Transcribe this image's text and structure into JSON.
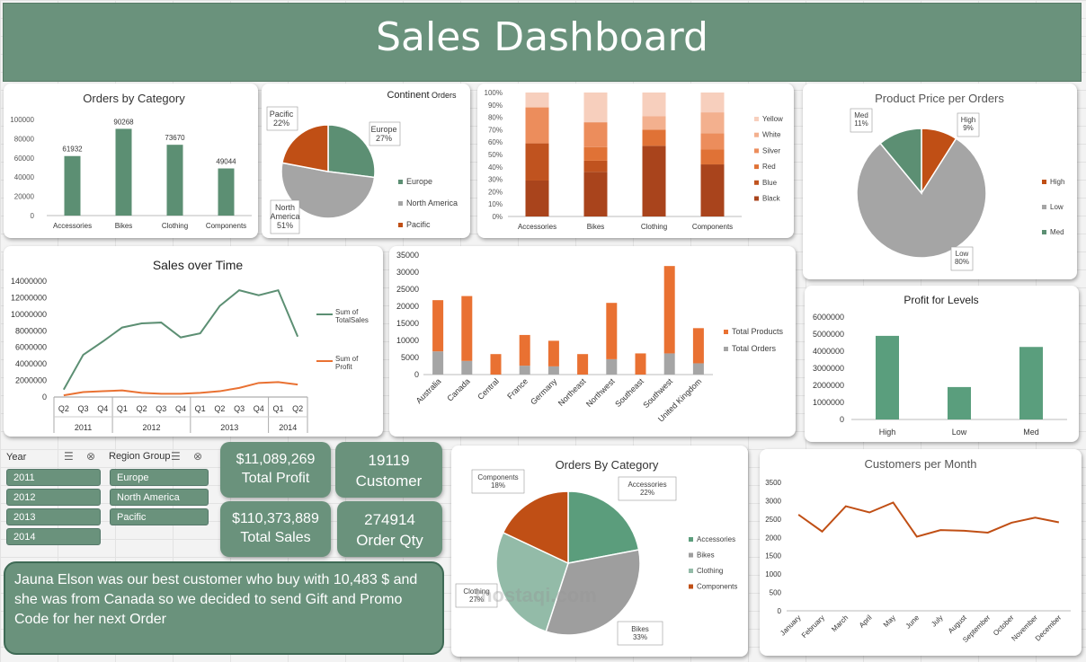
{
  "title": "Sales Dashboard",
  "kpis": {
    "profit_value": "$11,089,269",
    "profit_label": "Total Profit",
    "customer_value": "19119",
    "customer_label": "Customer",
    "sales_value": "$110,373,889",
    "sales_label": "Total Sales",
    "qty_value": "274914",
    "qty_label": "Order Qty"
  },
  "slicers": {
    "year": {
      "title": "Year",
      "items": [
        "2011",
        "2012",
        "2013",
        "2014"
      ]
    },
    "region": {
      "title": "Region Group",
      "items": [
        "Europe",
        "North America",
        "Pacific"
      ]
    }
  },
  "note": "Jauna Elson was our best customer who buy with 10,483 $ and she was from Canada so we decided to send Gift and Promo Code for her next Order",
  "watermark": "mostaqi.com",
  "colors": {
    "green": "#5c8f73",
    "grey": "#a5a5a5",
    "orange": "#e97132",
    "rust": "#c04f15",
    "brown": "#b55a28",
    "header": "#6a927c"
  },
  "chart_data": [
    {
      "id": "orders_by_category",
      "type": "bar",
      "title": "Orders by Category",
      "categories": [
        "Accessories",
        "Bikes",
        "Clothing",
        "Components"
      ],
      "values": [
        61932,
        90268,
        73670,
        49044
      ],
      "ylim": [
        0,
        100000
      ],
      "yticks": [
        "0",
        "20000",
        "40000",
        "60000",
        "80000",
        "100000"
      ],
      "grid": false
    },
    {
      "id": "continent_orders",
      "type": "pie",
      "title_main": "Continent",
      "title_small": "Orders",
      "labels": [
        "Europe",
        "North America",
        "Pacific"
      ],
      "values": [
        27,
        51,
        22
      ],
      "data_labels": [
        "Europe\n27%",
        "North\nAmerica\n51%",
        "Pacific\n22%"
      ],
      "legend": "right"
    },
    {
      "id": "color_mix",
      "type": "bar",
      "stacked": "100%",
      "categories": [
        "Accessories",
        "Bikes",
        "Clothing",
        "Components"
      ],
      "yticks": [
        "0%",
        "10%",
        "20%",
        "30%",
        "40%",
        "50%",
        "60%",
        "70%",
        "80%",
        "90%",
        "100%"
      ],
      "series": [
        {
          "name": "Black",
          "values": [
            29,
            36,
            57,
            42
          ]
        },
        {
          "name": "Blue",
          "values": [
            30,
            9,
            0,
            0
          ]
        },
        {
          "name": "Red",
          "values": [
            0,
            11,
            13,
            12
          ]
        },
        {
          "name": "Silver",
          "values": [
            29,
            20,
            0,
            13
          ]
        },
        {
          "name": "White",
          "values": [
            0,
            0,
            11,
            17
          ]
        },
        {
          "name": "Yellow",
          "values": [
            12,
            24,
            19,
            16
          ]
        }
      ],
      "legend": "right"
    },
    {
      "id": "product_price_per_orders",
      "type": "pie",
      "title": "Product Price per Orders",
      "labels": [
        "High",
        "Low",
        "Med"
      ],
      "values": [
        9,
        80,
        11
      ],
      "data_labels": [
        "High\n9%",
        "Low\n80%",
        "Med\n11%"
      ],
      "legend": "right"
    },
    {
      "id": "sales_over_time",
      "type": "line",
      "title": "Sales over Time",
      "x": [
        "Q2",
        "Q3",
        "Q4",
        "Q1",
        "Q2",
        "Q3",
        "Q4",
        "Q1",
        "Q2",
        "Q3",
        "Q4",
        "Q1",
        "Q2"
      ],
      "year_groups": [
        {
          "label": "2011",
          "count": 3
        },
        {
          "label": "2012",
          "count": 4
        },
        {
          "label": "2013",
          "count": 4
        },
        {
          "label": "2014",
          "count": 2
        }
      ],
      "series": [
        {
          "name": "Sum of TotalSales",
          "values": [
            900000,
            5100000,
            6700000,
            8400000,
            8900000,
            9000000,
            7200000,
            7700000,
            11000000,
            12900000,
            12300000,
            12900000,
            7300000
          ]
        },
        {
          "name": "Sum of Profit",
          "values": [
            200000,
            600000,
            700000,
            800000,
            500000,
            400000,
            400000,
            500000,
            700000,
            1100000,
            1700000,
            1800000,
            1500000
          ]
        }
      ],
      "ylim": [
        0,
        14000000
      ],
      "yticks": [
        "0",
        "2000000",
        "4000000",
        "6000000",
        "8000000",
        "10000000",
        "12000000",
        "14000000"
      ],
      "legend": "right"
    },
    {
      "id": "region_products_orders",
      "type": "bar",
      "stacked": true,
      "categories": [
        "Australia",
        "Canada",
        "Central",
        "France",
        "Germany",
        "Northeast",
        "Northwest",
        "Southeast",
        "Southwest",
        "United Kingdom"
      ],
      "series": [
        {
          "name": "Total Orders",
          "values": [
            6800,
            4000,
            0,
            2600,
            2400,
            0,
            4500,
            0,
            6200,
            3300
          ]
        },
        {
          "name": "Total Products",
          "values": [
            15000,
            19000,
            6000,
            9000,
            7500,
            6000,
            16500,
            6200,
            25600,
            10300
          ]
        }
      ],
      "ylim": [
        0,
        35000
      ],
      "yticks": [
        "0",
        "5000",
        "10000",
        "15000",
        "20000",
        "25000",
        "30000",
        "35000"
      ],
      "legend": "right"
    },
    {
      "id": "profit_for_levels",
      "type": "bar",
      "title": "Profit for Levels",
      "categories": [
        "High",
        "Low",
        "Med"
      ],
      "values": [
        4900000,
        1900000,
        4250000
      ],
      "ylim": [
        0,
        6000000
      ],
      "yticks": [
        "0",
        "1000000",
        "2000000",
        "3000000",
        "4000000",
        "5000000",
        "6000000"
      ]
    },
    {
      "id": "orders_by_category_pie",
      "type": "pie",
      "title": "Orders By Category",
      "labels": [
        "Accessories",
        "Bikes",
        "Clothing",
        "Components"
      ],
      "values": [
        22,
        33,
        27,
        18
      ],
      "data_labels": [
        "Accessories\n22%",
        "Bikes\n33%",
        "Clothing\n27%",
        "Components\n18%"
      ],
      "legend": "right"
    },
    {
      "id": "customers_per_month",
      "type": "line",
      "title": "Customers per Month",
      "x": [
        "January",
        "February",
        "March",
        "April",
        "May",
        "June",
        "July",
        "August",
        "September",
        "October",
        "November",
        "December"
      ],
      "values": [
        2620,
        2160,
        2850,
        2680,
        2950,
        2020,
        2200,
        2180,
        2130,
        2400,
        2540,
        2410
      ],
      "ylim": [
        0,
        3500
      ],
      "yticks": [
        "0",
        "500",
        "1000",
        "1500",
        "2000",
        "2500",
        "3000",
        "3500"
      ]
    }
  ]
}
